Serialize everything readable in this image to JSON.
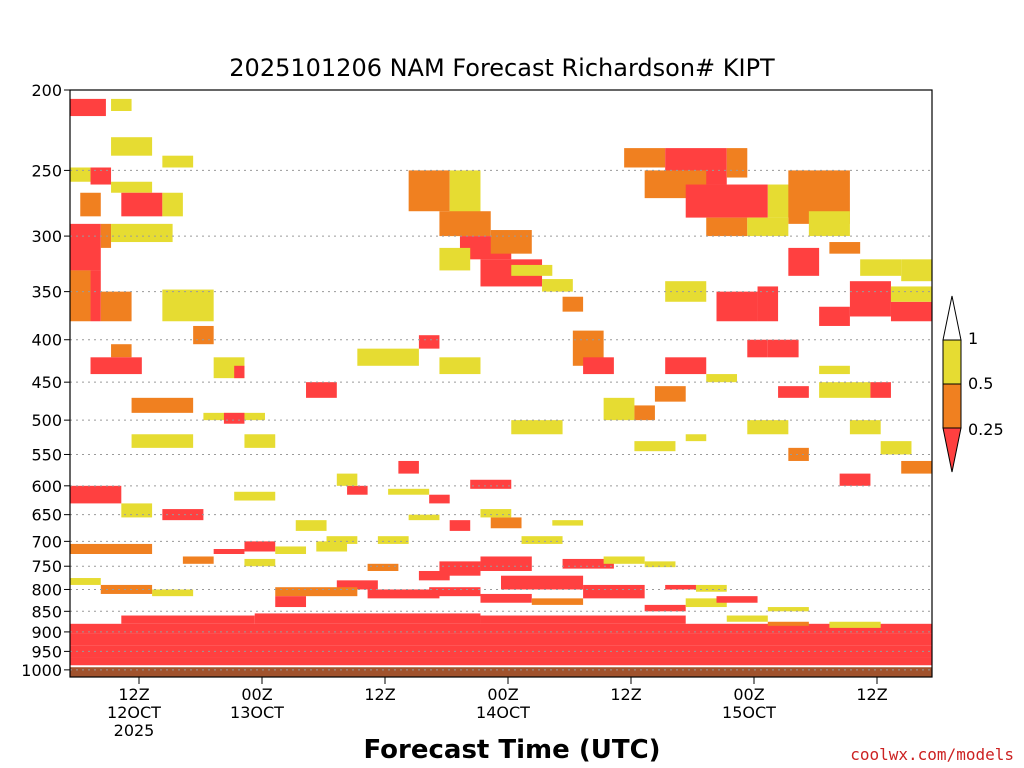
{
  "chart_data": {
    "type": "heatmap",
    "title": "2025101206 NAM Forecast Richardson# KIPT",
    "xlabel": "Forecast Time (UTC)",
    "ylabel": "",
    "credit": "coolwx.com/models",
    "y_ticks": [
      "200",
      "250",
      "300",
      "350",
      "400",
      "450",
      "500",
      "550",
      "600",
      "650",
      "700",
      "750",
      "800",
      "850",
      "900",
      "950",
      "1000"
    ],
    "x_ticks": [
      {
        "l1": "12Z",
        "l2": "12OCT",
        "l3": "2025"
      },
      {
        "l1": "00Z",
        "l2": "13OCT",
        "l3": ""
      },
      {
        "l1": "12Z",
        "l2": "",
        "l3": ""
      },
      {
        "l1": "00Z",
        "l2": "14OCT",
        "l3": ""
      },
      {
        "l1": "12Z",
        "l2": "",
        "l3": ""
      },
      {
        "l1": "00Z",
        "l2": "15OCT",
        "l3": ""
      },
      {
        "l1": "12Z",
        "l2": "",
        "l3": ""
      }
    ],
    "legend": {
      "labels": [
        "1",
        "0.5",
        "0.25"
      ],
      "placement": "right"
    },
    "colors": {
      "low": "#ff4040",
      "mid": "#f08020",
      "high": "#e6dc32",
      "ground": "#a0522d"
    },
    "y_scale": "log",
    "y_range": [
      1020,
      200
    ],
    "x_range_hours": [
      0,
      84
    ],
    "cells": [
      [
        0,
        205,
        3.5,
        215,
        "low"
      ],
      [
        4,
        205,
        6,
        212,
        "high"
      ],
      [
        4,
        228,
        8,
        240,
        "high"
      ],
      [
        9,
        240,
        12,
        248,
        "high"
      ],
      [
        0,
        248,
        2,
        258,
        "high"
      ],
      [
        2,
        248,
        4,
        260,
        "low"
      ],
      [
        4,
        258,
        8,
        266,
        "high"
      ],
      [
        1,
        266,
        3,
        284,
        "mid"
      ],
      [
        5,
        266,
        9,
        284,
        "low"
      ],
      [
        9,
        266,
        11,
        284,
        "high"
      ],
      [
        0,
        290,
        3,
        330,
        "low"
      ],
      [
        3,
        290,
        4,
        310,
        "mid"
      ],
      [
        4,
        290,
        10,
        305,
        "high"
      ],
      [
        0,
        330,
        2,
        380,
        "mid"
      ],
      [
        2,
        330,
        3,
        380,
        "low"
      ],
      [
        3,
        350,
        6,
        380,
        "mid"
      ],
      [
        9,
        348,
        14,
        380,
        "high"
      ],
      [
        12,
        385,
        14,
        405,
        "mid"
      ],
      [
        4,
        405,
        6,
        420,
        "mid"
      ],
      [
        2,
        420,
        7,
        440,
        "low"
      ],
      [
        14,
        420,
        17,
        445,
        "high"
      ],
      [
        16,
        430,
        17,
        445,
        "low"
      ],
      [
        23,
        450,
        26,
        470,
        "low"
      ],
      [
        6,
        470,
        12,
        490,
        "mid"
      ],
      [
        13,
        490,
        19,
        500,
        "high"
      ],
      [
        15,
        490,
        17,
        505,
        "low"
      ],
      [
        6,
        520,
        12,
        540,
        "high"
      ],
      [
        17,
        520,
        20,
        540,
        "high"
      ],
      [
        0,
        600,
        5,
        630,
        "low"
      ],
      [
        5,
        630,
        8,
        655,
        "high"
      ],
      [
        9,
        640,
        13,
        660,
        "low"
      ],
      [
        0,
        705,
        8,
        725,
        "mid"
      ],
      [
        17,
        700,
        20,
        720,
        "low"
      ],
      [
        24,
        700,
        27,
        720,
        "high"
      ],
      [
        22,
        660,
        25,
        680,
        "high"
      ],
      [
        33,
        250,
        37,
        280,
        "mid"
      ],
      [
        37,
        250,
        40,
        300,
        "high"
      ],
      [
        36,
        280,
        41,
        300,
        "mid"
      ],
      [
        38,
        300,
        43,
        320,
        "low"
      ],
      [
        40,
        320,
        46,
        345,
        "low"
      ],
      [
        36,
        310,
        39,
        330,
        "high"
      ],
      [
        34,
        395,
        36,
        410,
        "low"
      ],
      [
        41,
        295,
        45,
        315,
        "mid"
      ],
      [
        43,
        325,
        47,
        335,
        "high"
      ],
      [
        46,
        338,
        49,
        350,
        "high"
      ],
      [
        48,
        355,
        50,
        370,
        "mid"
      ],
      [
        49,
        390,
        52,
        430,
        "mid"
      ],
      [
        50,
        420,
        53,
        440,
        "low"
      ],
      [
        52,
        470,
        55,
        500,
        "high"
      ],
      [
        55,
        480,
        57,
        500,
        "mid"
      ],
      [
        55,
        530,
        59,
        545,
        "high"
      ],
      [
        43,
        500,
        48,
        520,
        "high"
      ],
      [
        36,
        420,
        40,
        440,
        "high"
      ],
      [
        28,
        410,
        34,
        430,
        "high"
      ],
      [
        54,
        235,
        58,
        248,
        "mid"
      ],
      [
        58,
        235,
        64,
        260,
        "low"
      ],
      [
        64,
        235,
        66,
        255,
        "mid"
      ],
      [
        56,
        250,
        62,
        270,
        "mid"
      ],
      [
        60,
        260,
        68,
        285,
        "low"
      ],
      [
        68,
        260,
        72,
        285,
        "high"
      ],
      [
        70,
        250,
        76,
        290,
        "mid"
      ],
      [
        62,
        285,
        66,
        300,
        "mid"
      ],
      [
        66,
        285,
        70,
        300,
        "high"
      ],
      [
        72,
        280,
        76,
        300,
        "high"
      ],
      [
        74,
        305,
        77,
        315,
        "mid"
      ],
      [
        70,
        310,
        73,
        335,
        "low"
      ],
      [
        63,
        350,
        67,
        380,
        "low"
      ],
      [
        67,
        345,
        69,
        380,
        "low"
      ],
      [
        58,
        340,
        62,
        360,
        "high"
      ],
      [
        76,
        340,
        80,
        375,
        "low"
      ],
      [
        80,
        360,
        84,
        380,
        "low"
      ],
      [
        80,
        345,
        84,
        360,
        "high"
      ],
      [
        73,
        365,
        76,
        385,
        "low"
      ],
      [
        68,
        400,
        71,
        420,
        "low"
      ],
      [
        58,
        420,
        62,
        440,
        "low"
      ],
      [
        62,
        440,
        65,
        450,
        "high"
      ],
      [
        66,
        400,
        68,
        420,
        "low"
      ],
      [
        69,
        455,
        72,
        470,
        "low"
      ],
      [
        57,
        455,
        60,
        475,
        "mid"
      ],
      [
        60,
        520,
        62,
        530,
        "high"
      ],
      [
        66,
        500,
        70,
        520,
        "high"
      ],
      [
        73,
        450,
        78,
        470,
        "high"
      ],
      [
        78,
        450,
        80,
        470,
        "low"
      ],
      [
        79,
        530,
        82,
        550,
        "high"
      ],
      [
        81,
        560,
        84,
        580,
        "mid"
      ],
      [
        75,
        580,
        78,
        600,
        "low"
      ],
      [
        70,
        540,
        72,
        560,
        "mid"
      ],
      [
        76,
        500,
        79,
        520,
        "high"
      ],
      [
        77,
        320,
        81,
        335,
        "high"
      ],
      [
        81,
        320,
        84,
        340,
        "high"
      ],
      [
        73,
        430,
        76,
        440,
        "high"
      ],
      [
        36,
        740,
        40,
        770,
        "low"
      ],
      [
        40,
        730,
        45,
        760,
        "low"
      ],
      [
        42,
        770,
        50,
        800,
        "low"
      ],
      [
        50,
        790,
        56,
        820,
        "low"
      ],
      [
        34,
        760,
        37,
        780,
        "low"
      ],
      [
        29,
        800,
        36,
        820,
        "low"
      ],
      [
        26,
        780,
        30,
        800,
        "low"
      ],
      [
        20,
        795,
        28,
        815,
        "mid"
      ],
      [
        20,
        815,
        23,
        840,
        "low"
      ],
      [
        35,
        795,
        40,
        815,
        "low"
      ],
      [
        40,
        810,
        45,
        830,
        "low"
      ],
      [
        45,
        820,
        50,
        835,
        "mid"
      ],
      [
        56,
        835,
        60,
        850,
        "low"
      ],
      [
        60,
        820,
        64,
        840,
        "high"
      ],
      [
        58,
        790,
        61,
        800,
        "low"
      ],
      [
        61,
        790,
        64,
        805,
        "high"
      ],
      [
        64,
        860,
        68,
        875,
        "high"
      ],
      [
        68,
        875,
        72,
        885,
        "mid"
      ],
      [
        74,
        875,
        79,
        890,
        "high"
      ],
      [
        8,
        800,
        12,
        815,
        "high"
      ],
      [
        3,
        790,
        8,
        810,
        "mid"
      ],
      [
        0,
        775,
        3,
        790,
        "high"
      ],
      [
        44,
        690,
        48,
        705,
        "high"
      ],
      [
        48,
        735,
        53,
        755,
        "low"
      ],
      [
        52,
        730,
        56,
        745,
        "high"
      ],
      [
        56,
        740,
        59,
        752,
        "high"
      ],
      [
        29,
        745,
        32,
        760,
        "mid"
      ],
      [
        30,
        690,
        33,
        705,
        "high"
      ],
      [
        25,
        690,
        28,
        705,
        "high"
      ],
      [
        33,
        650,
        36,
        660,
        "high"
      ],
      [
        47,
        660,
        50,
        670,
        "high"
      ],
      [
        41,
        655,
        44,
        675,
        "mid"
      ],
      [
        40,
        640,
        43,
        655,
        "high"
      ],
      [
        37,
        660,
        39,
        680,
        "low"
      ],
      [
        11,
        730,
        14,
        745,
        "mid"
      ],
      [
        17,
        735,
        20,
        750,
        "high"
      ],
      [
        14,
        715,
        17,
        725,
        "low"
      ],
      [
        20,
        710,
        23,
        725,
        "high"
      ],
      [
        32,
        560,
        34,
        580,
        "low"
      ],
      [
        27,
        600,
        29,
        615,
        "low"
      ],
      [
        26,
        580,
        28,
        600,
        "high"
      ],
      [
        35,
        615,
        37,
        630,
        "low"
      ],
      [
        31,
        605,
        35,
        615,
        "high"
      ],
      [
        16,
        610,
        20,
        625,
        "high"
      ],
      [
        39,
        590,
        43,
        605,
        "low"
      ],
      [
        63,
        815,
        67,
        830,
        "low"
      ],
      [
        68,
        840,
        72,
        850,
        "high"
      ]
    ],
    "bands": [
      [
        0,
        880,
        84,
        905,
        "low"
      ],
      [
        0,
        905,
        84,
        935,
        "low"
      ],
      [
        0,
        935,
        84,
        965,
        "low"
      ],
      [
        0,
        965,
        84,
        990,
        "low"
      ],
      [
        18,
        855,
        40,
        880,
        "low"
      ],
      [
        40,
        860,
        60,
        880,
        "low"
      ],
      [
        5,
        860,
        18,
        880,
        "low"
      ]
    ]
  }
}
